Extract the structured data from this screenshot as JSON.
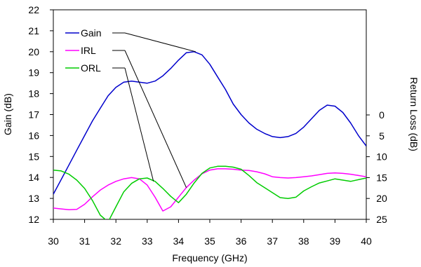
{
  "chart_data": {
    "type": "line",
    "xlabel": "Frequency (GHz)",
    "ylabel_left": "Gain (dB)",
    "ylabel_right": "Return Loss (dB)",
    "xlim": [
      30,
      40
    ],
    "ylim_left": [
      12,
      22
    ],
    "ylim_right": [
      25,
      0
    ],
    "right_axis_visible_range": [
      0,
      25
    ],
    "x_ticks": [
      "30",
      "31",
      "32",
      "33",
      "34",
      "35",
      "36",
      "37",
      "38",
      "39",
      "40"
    ],
    "y_left_ticks": [
      "12",
      "13",
      "14",
      "15",
      "16",
      "17",
      "18",
      "19",
      "20",
      "21",
      "22"
    ],
    "y_right_ticks": [
      "0",
      "5",
      "10",
      "15",
      "20",
      "25"
    ],
    "grid": false,
    "legend_placement": "top-left",
    "series": [
      {
        "name": "Gain",
        "axis": "left",
        "color": "#0000cc",
        "x": [
          30.0,
          30.25,
          30.5,
          30.75,
          31.0,
          31.25,
          31.5,
          31.75,
          32.0,
          32.25,
          32.5,
          32.75,
          33.0,
          33.25,
          33.5,
          33.75,
          34.0,
          34.25,
          34.5,
          34.75,
          35.0,
          35.25,
          35.5,
          35.75,
          36.0,
          36.25,
          36.5,
          36.75,
          37.0,
          37.25,
          37.5,
          37.75,
          38.0,
          38.25,
          38.5,
          38.75,
          39.0,
          39.25,
          39.5,
          39.75,
          40.0
        ],
        "values": [
          13.2,
          13.9,
          14.6,
          15.3,
          16.0,
          16.7,
          17.3,
          17.9,
          18.3,
          18.55,
          18.6,
          18.55,
          18.5,
          18.6,
          18.85,
          19.2,
          19.6,
          19.95,
          20.0,
          19.85,
          19.4,
          18.8,
          18.2,
          17.5,
          17.0,
          16.6,
          16.3,
          16.1,
          15.95,
          15.9,
          15.95,
          16.1,
          16.4,
          16.8,
          17.2,
          17.45,
          17.4,
          17.1,
          16.6,
          16.0,
          15.5
        ]
      },
      {
        "name": "IRL",
        "axis": "right",
        "color": "#ff00ff",
        "x": [
          30.0,
          30.25,
          30.5,
          30.75,
          31.0,
          31.25,
          31.5,
          31.75,
          32.0,
          32.25,
          32.5,
          32.75,
          33.0,
          33.25,
          33.5,
          33.75,
          34.0,
          34.25,
          34.5,
          34.75,
          35.0,
          35.25,
          35.5,
          35.75,
          36.0,
          36.25,
          36.5,
          36.75,
          37.0,
          37.25,
          37.5,
          37.75,
          38.0,
          38.25,
          38.5,
          38.75,
          39.0,
          39.25,
          39.5,
          39.75,
          40.0
        ],
        "values": [
          22.3,
          22.5,
          22.7,
          22.6,
          21.4,
          19.6,
          18.0,
          16.8,
          15.9,
          15.3,
          15.0,
          15.3,
          16.8,
          19.7,
          23.0,
          22.0,
          19.7,
          17.4,
          15.6,
          14.1,
          13.2,
          12.9,
          12.9,
          13.0,
          13.2,
          13.3,
          13.6,
          14.1,
          14.8,
          15.0,
          15.1,
          15.0,
          14.8,
          14.6,
          14.3,
          14.0,
          13.9,
          14.0,
          14.2,
          14.5,
          14.8
        ]
      },
      {
        "name": "ORL",
        "axis": "right",
        "color": "#00cc00",
        "x": [
          30.0,
          30.25,
          30.5,
          30.75,
          31.0,
          31.25,
          31.5,
          31.75,
          32.0,
          32.25,
          32.5,
          32.75,
          33.0,
          33.25,
          33.5,
          33.75,
          34.0,
          34.25,
          34.5,
          34.75,
          35.0,
          35.25,
          35.5,
          35.75,
          36.0,
          36.25,
          36.5,
          36.75,
          37.0,
          37.25,
          37.5,
          37.75,
          38.0,
          38.25,
          38.5,
          38.75,
          39.0,
          39.25,
          39.5,
          39.75,
          40.0
        ],
        "values": [
          13.2,
          13.4,
          14.2,
          15.6,
          17.6,
          20.5,
          24.0,
          25.6,
          22.0,
          18.4,
          16.4,
          15.3,
          15.1,
          15.9,
          17.6,
          19.5,
          21.0,
          19.0,
          16.3,
          14.0,
          12.7,
          12.3,
          12.3,
          12.5,
          13.0,
          14.5,
          16.2,
          17.4,
          18.6,
          19.8,
          20.0,
          19.7,
          18.2,
          17.2,
          16.3,
          15.8,
          15.3,
          15.6,
          15.9,
          15.5,
          15.1
        ]
      }
    ],
    "legend_entries": [
      {
        "name": "Gain",
        "color": "#0000cc",
        "callout_to": {
          "x": 34.55,
          "y": 20.0,
          "axis": "left"
        }
      },
      {
        "name": "IRL",
        "color": "#ff00ff",
        "callout_to": {
          "x": 34.25,
          "y": 17.4,
          "axis": "right"
        }
      },
      {
        "name": "ORL",
        "color": "#00cc00",
        "callout_to": {
          "x": 33.2,
          "y": 15.9,
          "axis": "right"
        }
      }
    ]
  }
}
